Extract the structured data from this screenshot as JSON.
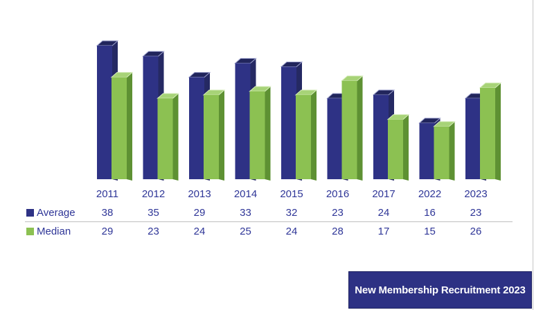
{
  "chart_data": {
    "type": "bar",
    "style": "3d-clustered-column",
    "title": "New Membership Recruitment 2023",
    "categories": [
      "2011",
      "2012",
      "2013",
      "2014",
      "2015",
      "2016",
      "2017",
      "2022",
      "2023"
    ],
    "series": [
      {
        "name": "Average",
        "values": [
          38,
          35,
          29,
          33,
          32,
          23,
          24,
          16,
          23
        ]
      },
      {
        "name": "Median",
        "values": [
          29,
          23,
          24,
          25,
          24,
          28,
          17,
          15,
          26
        ]
      }
    ],
    "xlabel": "",
    "ylabel": "",
    "ylim": [
      0,
      40
    ],
    "grid": false,
    "axes_hidden": true,
    "legend_position": "table-rows-left",
    "data_table_shown": true
  },
  "colors": {
    "average_front": "#2e3285",
    "average_side": "#252963",
    "average_top": "#21255c",
    "average_top_edge": "#a0a4cf",
    "median_front": "#8cc152",
    "median_side": "#5e9133",
    "median_top": "#a7d377",
    "median_top_edge": "#d6ecbb",
    "table_text": "#2e3597",
    "separator": "#bfbfbf",
    "title_bg": "#2d3184",
    "title_text": "#ffffff"
  },
  "title_box": {
    "label": "New Membership Recruitment 2023"
  }
}
